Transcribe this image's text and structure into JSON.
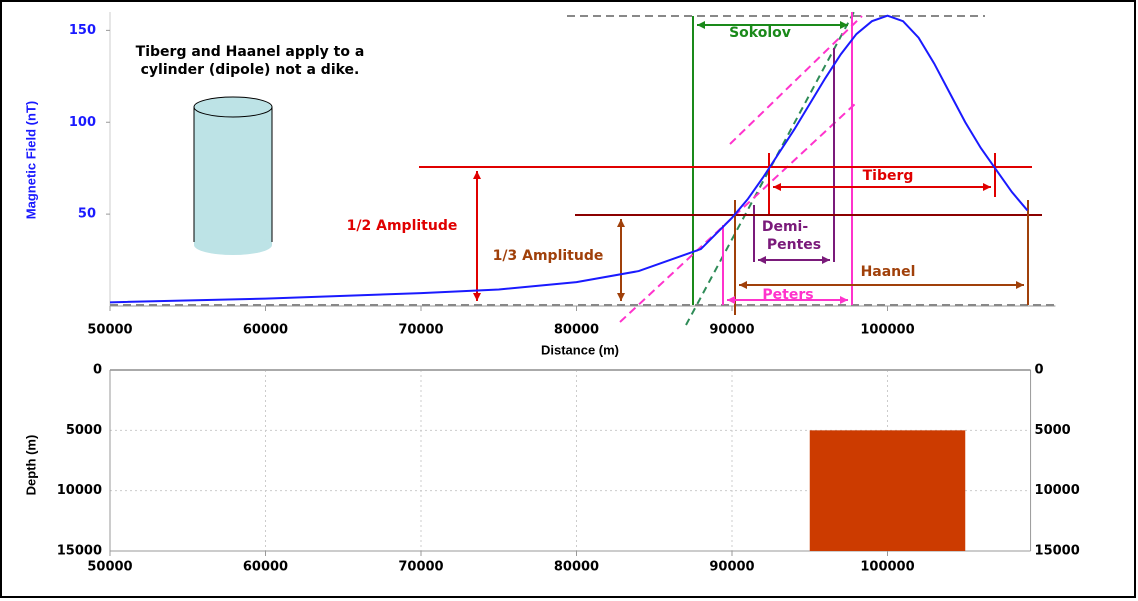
{
  "chart_data": [
    {
      "type": "line",
      "xlabel": "Distance (m)",
      "ylabel": "Magnetic Field (nT)",
      "x": [
        50000,
        60000,
        70000,
        75000,
        80000,
        84000,
        88000,
        90000,
        91000,
        92000,
        93000,
        94000,
        95000,
        96000,
        97000,
        98000,
        99000,
        100000,
        101000,
        102000,
        103000,
        104000,
        105000,
        106000,
        107000,
        108000,
        109000
      ],
      "series": [
        {
          "color": "#1a1aff",
          "values": [
            2,
            4,
            7,
            9,
            13,
            19,
            31,
            48,
            58,
            70,
            83,
            96,
            110,
            124,
            137,
            148,
            155,
            158,
            155,
            146,
            132,
            116,
            100,
            86,
            74,
            62,
            52
          ]
        }
      ],
      "xlim": [
        50000,
        110800
      ],
      "ylim": [
        0,
        160
      ],
      "xticks": [
        50000,
        60000,
        70000,
        80000,
        90000,
        100000
      ],
      "yticks": [
        50,
        100,
        150
      ],
      "grid": false,
      "annotations": {
        "note": [
          "Tiberg and Haanel apply to a",
          "cylinder (dipole) not a dike."
        ],
        "sokolov": "Sokolov",
        "tiberg": "Tiberg",
        "demi_pentes": [
          "Demi-",
          "Pentes"
        ],
        "haanel": "Haanel",
        "peters": "Peters",
        "half_amplitude": "1/2 Amplitude",
        "third_amplitude": "1/3 Amplitude"
      }
    },
    {
      "type": "section",
      "ylabel": "Depth (m)",
      "xlim": [
        50000,
        109200
      ],
      "ylim": [
        0,
        15000
      ],
      "xticks": [
        50000,
        60000,
        70000,
        80000,
        90000,
        100000
      ],
      "yticks": [
        0,
        5000,
        10000,
        15000
      ],
      "grid": true,
      "bodies": [
        {
          "x": [
            95000,
            105000
          ],
          "depth": [
            5000,
            15000
          ],
          "color": "#cc3b00"
        }
      ]
    }
  ]
}
